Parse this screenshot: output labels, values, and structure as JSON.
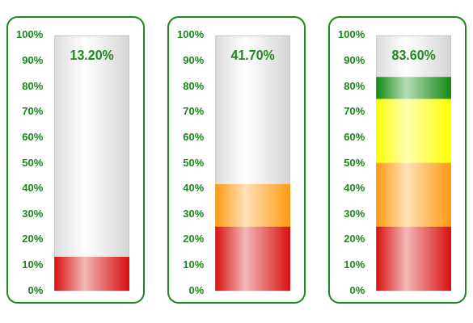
{
  "chart_data": [
    {
      "type": "bar",
      "title": "13.20%",
      "categories": [
        null
      ],
      "series": [
        {
          "color": "#d81010",
          "values": [
            13.2
          ]
        }
      ],
      "ylim": [
        0,
        100
      ],
      "yticks": [
        {
          "value": 0,
          "label": "0%"
        },
        {
          "value": 10,
          "label": "10%"
        },
        {
          "value": 20,
          "label": "20%"
        },
        {
          "value": 30,
          "label": "30%"
        },
        {
          "value": 40,
          "label": "40%"
        },
        {
          "value": 50,
          "label": "50%"
        },
        {
          "value": 60,
          "label": "60%"
        },
        {
          "value": 70,
          "label": "70%"
        },
        {
          "value": 80,
          "label": "80%"
        },
        {
          "value": 90,
          "label": "90%"
        },
        {
          "value": 100,
          "label": "100%"
        }
      ],
      "stacked": true,
      "grid": false,
      "tick_labels": "y"
    },
    {
      "type": "bar",
      "title": "41.70%",
      "categories": [
        null
      ],
      "series": [
        {
          "color": "#d81010",
          "values": [
            25
          ]
        },
        {
          "color": "#ff9a10",
          "values": [
            16.7
          ]
        }
      ],
      "ylim": [
        0,
        100
      ],
      "yticks": [
        {
          "value": 0,
          "label": "0%"
        },
        {
          "value": 10,
          "label": "10%"
        },
        {
          "value": 20,
          "label": "20%"
        },
        {
          "value": 30,
          "label": "30%"
        },
        {
          "value": 40,
          "label": "40%"
        },
        {
          "value": 50,
          "label": "50%"
        },
        {
          "value": 60,
          "label": "60%"
        },
        {
          "value": 70,
          "label": "70%"
        },
        {
          "value": 80,
          "label": "80%"
        },
        {
          "value": 90,
          "label": "90%"
        },
        {
          "value": 100,
          "label": "100%"
        }
      ],
      "stacked": true,
      "grid": false,
      "tick_labels": "y"
    },
    {
      "type": "bar",
      "title": "83.60%",
      "categories": [
        null
      ],
      "series": [
        {
          "color": "#d81010",
          "values": [
            25
          ]
        },
        {
          "color": "#ff9a10",
          "values": [
            25
          ]
        },
        {
          "color": "#ffff00",
          "values": [
            25
          ]
        },
        {
          "color": "#128a12",
          "values": [
            8.6
          ]
        }
      ],
      "ylim": [
        0,
        100
      ],
      "yticks": [
        {
          "value": 0,
          "label": "0%"
        },
        {
          "value": 10,
          "label": "10%"
        },
        {
          "value": 20,
          "label": "20%"
        },
        {
          "value": 30,
          "label": "30%"
        },
        {
          "value": 40,
          "label": "40%"
        },
        {
          "value": 50,
          "label": "50%"
        },
        {
          "value": 60,
          "label": "60%"
        },
        {
          "value": 70,
          "label": "70%"
        },
        {
          "value": 80,
          "label": "80%"
        },
        {
          "value": 90,
          "label": "90%"
        },
        {
          "value": 100,
          "label": "100%"
        }
      ],
      "stacked": true,
      "grid": false,
      "tick_labels": "y"
    }
  ]
}
